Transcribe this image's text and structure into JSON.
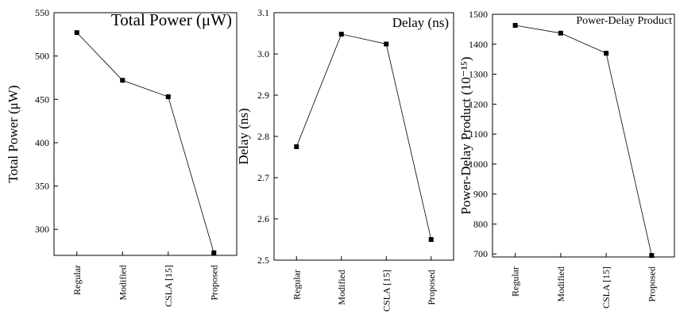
{
  "chart_data": [
    {
      "type": "line",
      "title": "Total Power (μW)",
      "y_label": "Total Power (μW)",
      "categories": [
        "Regular",
        "Modified",
        "CSLA [15]",
        "Proposed"
      ],
      "values": [
        527,
        472,
        453,
        273
      ],
      "color": "#000000",
      "ylim": [
        270,
        550
      ],
      "yticks": [
        300,
        350,
        400,
        450,
        500,
        550
      ]
    },
    {
      "type": "line",
      "title": "Delay (ns)",
      "y_label": "Delay (ns)",
      "categories": [
        "Regular",
        "Modified",
        "CSLA [15]",
        "Proposed"
      ],
      "values": [
        2.775,
        3.048,
        3.024,
        2.55
      ],
      "color": "#000000",
      "ylim": [
        2.5,
        3.1
      ],
      "yticks": [
        {
          "value": 2.5,
          "label": "2.5"
        },
        2.6,
        2.7,
        2.8,
        2.9,
        {
          "value": 3.0,
          "label": "3.0"
        },
        3.1
      ]
    },
    {
      "type": "line",
      "title": "Power-Delay Product",
      "y_label": "Power-Delay Product (10⁻¹⁵)",
      "categories": [
        "Regular",
        "Modified",
        "CSLA [15]",
        "Proposed"
      ],
      "values": [
        1463,
        1437,
        1370,
        695
      ],
      "color": "#000000",
      "ylim": [
        690,
        1500
      ],
      "yticks": [
        700,
        800,
        900,
        1000,
        1100,
        1200,
        1300,
        1400,
        1500
      ]
    }
  ]
}
